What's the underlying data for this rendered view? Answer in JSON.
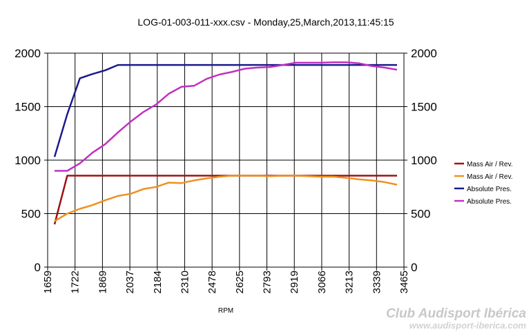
{
  "chart_data": {
    "type": "line",
    "title": "LOG-01-003-011-xxx.csv - Monday,25,March,2013,11:45:15",
    "xlabel": "RPM",
    "ylabel": "",
    "ylim": [
      0,
      2000
    ],
    "yticks": [
      "0",
      "500",
      "1000",
      "1500",
      "2000"
    ],
    "y2ticks": [
      "0",
      "500",
      "1000",
      "1500",
      "2000"
    ],
    "xtick_labels": [
      "1659",
      "1722",
      "1869",
      "2037",
      "2184",
      "2310",
      "2478",
      "2625",
      "2793",
      "2919",
      "3066",
      "3213",
      "3339",
      "3465"
    ],
    "grid": true,
    "legend_position": "right",
    "series": [
      {
        "name": "Mass Air / Rev.",
        "color": "#a01010",
        "values": [
          400,
          855,
          855,
          855,
          855,
          855,
          855,
          855,
          855,
          855,
          855,
          855,
          855,
          855,
          855,
          855,
          855,
          855,
          855,
          855,
          855,
          855,
          855,
          855,
          855,
          855,
          855,
          855
        ]
      },
      {
        "name": "Mass Air / Rev.",
        "color": "#ef9020",
        "values": [
          430,
          500,
          545,
          580,
          625,
          665,
          685,
          730,
          750,
          790,
          785,
          810,
          830,
          845,
          855,
          855,
          855,
          850,
          855,
          855,
          850,
          845,
          845,
          835,
          820,
          810,
          795,
          770
        ]
      },
      {
        "name": "Absolute Pres.",
        "color": "#1a1a8c",
        "values": [
          1030,
          1430,
          1765,
          1805,
          1840,
          1890,
          1890,
          1890,
          1890,
          1890,
          1890,
          1890,
          1890,
          1890,
          1890,
          1890,
          1890,
          1890,
          1890,
          1890,
          1890,
          1890,
          1890,
          1890,
          1890,
          1890,
          1890,
          1890
        ]
      },
      {
        "name": "Absolute Pres.",
        "color": "#c030c0",
        "values": [
          900,
          900,
          970,
          1070,
          1150,
          1260,
          1360,
          1450,
          1520,
          1620,
          1685,
          1695,
          1760,
          1800,
          1825,
          1855,
          1865,
          1870,
          1890,
          1910,
          1910,
          1910,
          1915,
          1915,
          1905,
          1880,
          1865,
          1845
        ]
      }
    ]
  },
  "watermark": {
    "brand": "Club Audisport Ibérica",
    "url": "www.audisport-iberica.com"
  }
}
